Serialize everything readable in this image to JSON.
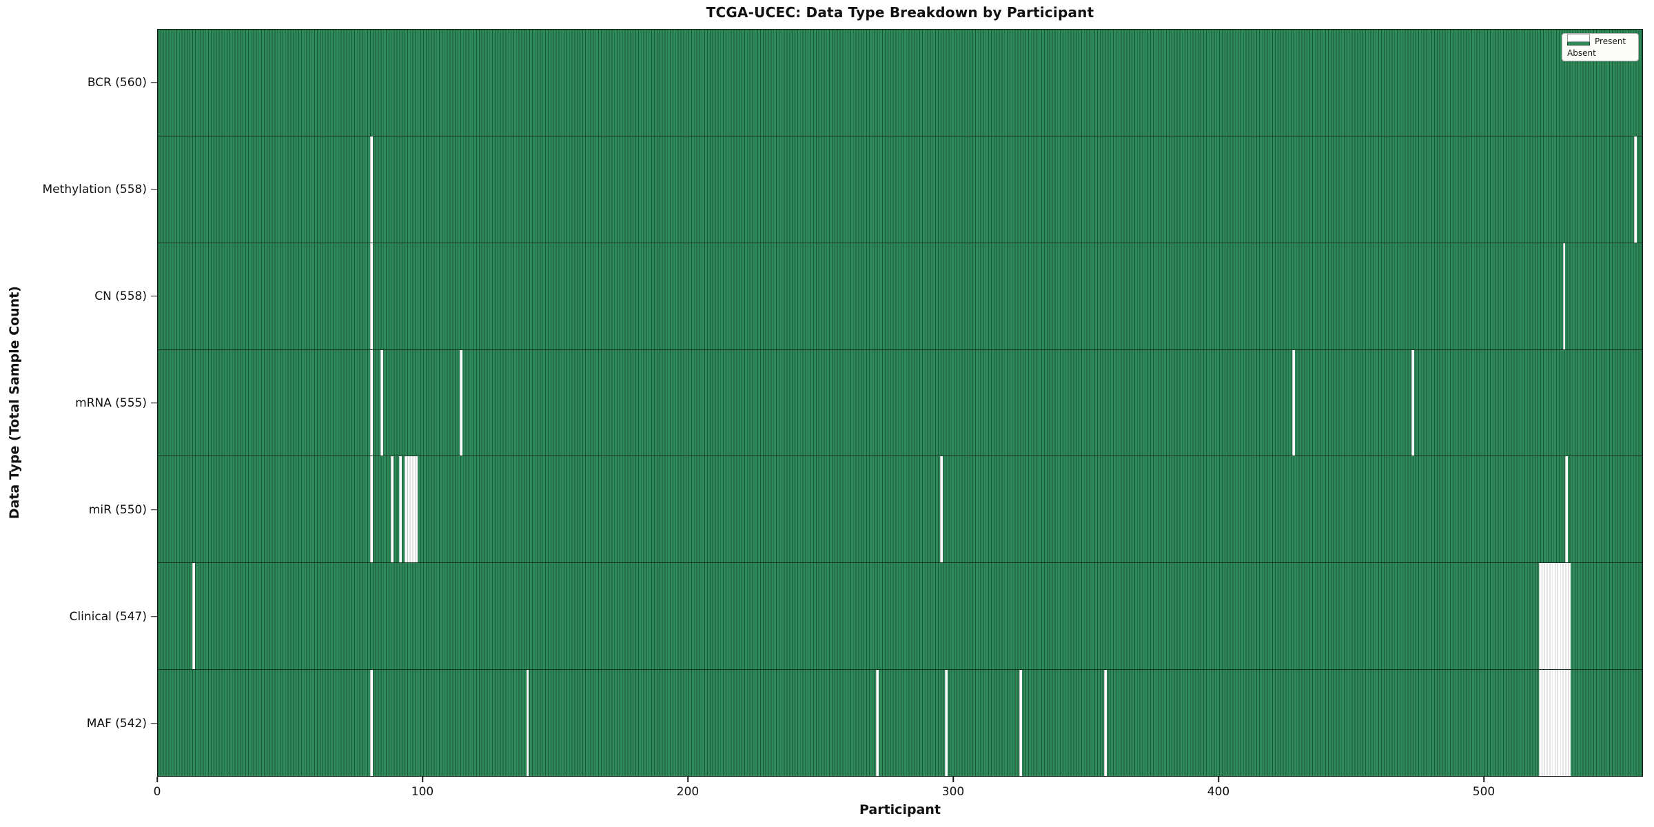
{
  "title": "TCGA-UCEC: Data Type Breakdown by Participant",
  "xlabel": "Participant",
  "ylabel": "Data Type (Total Sample Count)",
  "legend": {
    "present_label": "Present",
    "absent_label": "Absent"
  },
  "colors": {
    "present": "#2f8a59",
    "absent": "#ffffff",
    "spine": "#1a1a1a"
  },
  "chart_data": {
    "type": "heatmap",
    "subtype": "presence-absence-matrix",
    "title": "TCGA-UCEC: Data Type Breakdown by Participant",
    "xlabel": "Participant",
    "ylabel": "Data Type (Total Sample Count)",
    "x_range": [
      0,
      560
    ],
    "x_ticks": [
      0,
      100,
      200,
      300,
      400,
      500
    ],
    "n_participants": 560,
    "grid": false,
    "legend_position": "upper right",
    "legend_entries": [
      {
        "label": "Present",
        "color": "#2f8a59"
      },
      {
        "label": "Absent",
        "color": "#ffffff"
      }
    ],
    "rows": [
      {
        "data_type": "BCR",
        "label": "BCR (560)",
        "present_count": 560,
        "absent_count": 0,
        "absent_runs": []
      },
      {
        "data_type": "Methylation",
        "label": "Methylation (558)",
        "present_count": 558,
        "absent_count": 2,
        "absent_runs": [
          [
            80,
            1
          ],
          [
            557,
            1
          ]
        ]
      },
      {
        "data_type": "CN",
        "label": "CN (558)",
        "present_count": 558,
        "absent_count": 2,
        "absent_runs": [
          [
            80,
            1
          ],
          [
            530,
            1
          ]
        ]
      },
      {
        "data_type": "mRNA",
        "label": "mRNA (555)",
        "present_count": 555,
        "absent_count": 5,
        "absent_runs": [
          [
            80,
            1
          ],
          [
            84,
            1
          ],
          [
            114,
            1
          ],
          [
            428,
            1
          ],
          [
            473,
            1
          ]
        ]
      },
      {
        "data_type": "miR",
        "label": "miR (550)",
        "present_count": 550,
        "absent_count": 10,
        "absent_runs": [
          [
            80,
            1
          ],
          [
            88,
            1
          ],
          [
            91,
            1
          ],
          [
            93,
            5
          ],
          [
            295,
            1
          ],
          [
            531,
            1
          ]
        ]
      },
      {
        "data_type": "Clinical",
        "label": "Clinical (547)",
        "present_count": 547,
        "absent_count": 13,
        "absent_runs": [
          [
            13,
            1
          ],
          [
            521,
            12
          ]
        ]
      },
      {
        "data_type": "MAF",
        "label": "MAF (542)",
        "present_count": 542,
        "absent_count": 18,
        "absent_runs": [
          [
            80,
            1
          ],
          [
            139,
            1
          ],
          [
            271,
            1
          ],
          [
            297,
            1
          ],
          [
            325,
            1
          ],
          [
            357,
            1
          ],
          [
            521,
            12
          ]
        ]
      }
    ]
  }
}
